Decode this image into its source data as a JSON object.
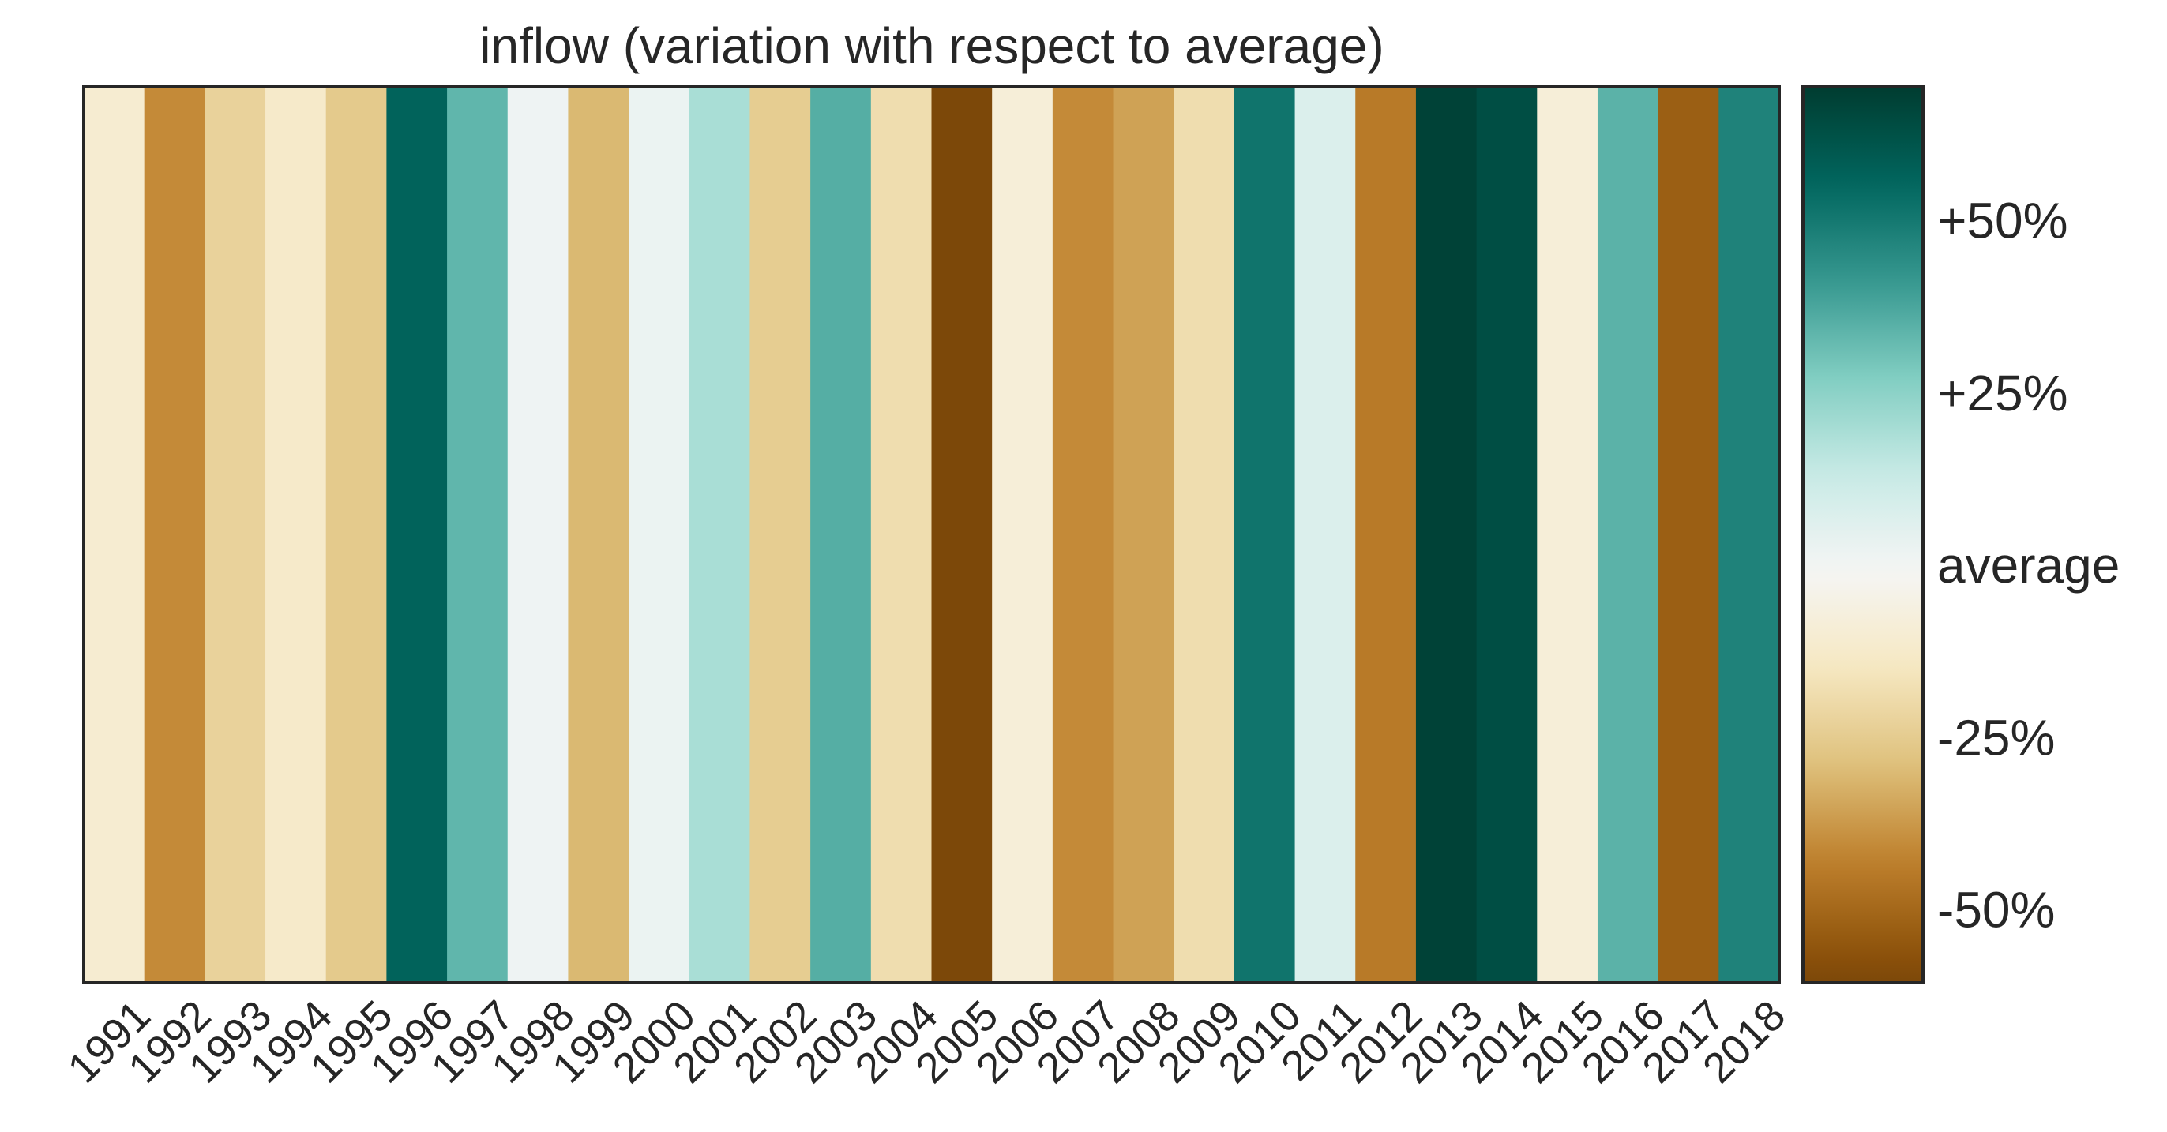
{
  "chart_data": {
    "type": "heatmap",
    "title": "inflow (variation with respect to average)",
    "xlabel": "",
    "ylabel": "",
    "colormap": "BrBG",
    "value_unit": "percent variation from average",
    "vmin": -60,
    "vmax": 70,
    "categories": [
      "1991",
      "1992",
      "1993",
      "1994",
      "1995",
      "1996",
      "1997",
      "1998",
      "1999",
      "2000",
      "2001",
      "2002",
      "2003",
      "2004",
      "2005",
      "2006",
      "2007",
      "2008",
      "2009",
      "2010",
      "2011",
      "2012",
      "2013",
      "2014",
      "2015",
      "2016",
      "2017",
      "2018"
    ],
    "values": [
      -10,
      -40,
      -22,
      -12,
      -25,
      57,
      34,
      2,
      -30,
      3,
      20,
      -24,
      36,
      -18,
      -60,
      -8,
      -40,
      -35,
      -18,
      52,
      8,
      -44,
      68,
      64,
      -8,
      35,
      -52,
      48
    ],
    "colorbar": {
      "ticks": [
        {
          "value": 50,
          "label": "+50%"
        },
        {
          "value": 25,
          "label": "+25%"
        },
        {
          "value": 0,
          "label": "average"
        },
        {
          "value": -25,
          "label": "-25%"
        },
        {
          "value": -50,
          "label": "-50%"
        }
      ]
    },
    "grid": false,
    "legend": "colorbar-right"
  }
}
